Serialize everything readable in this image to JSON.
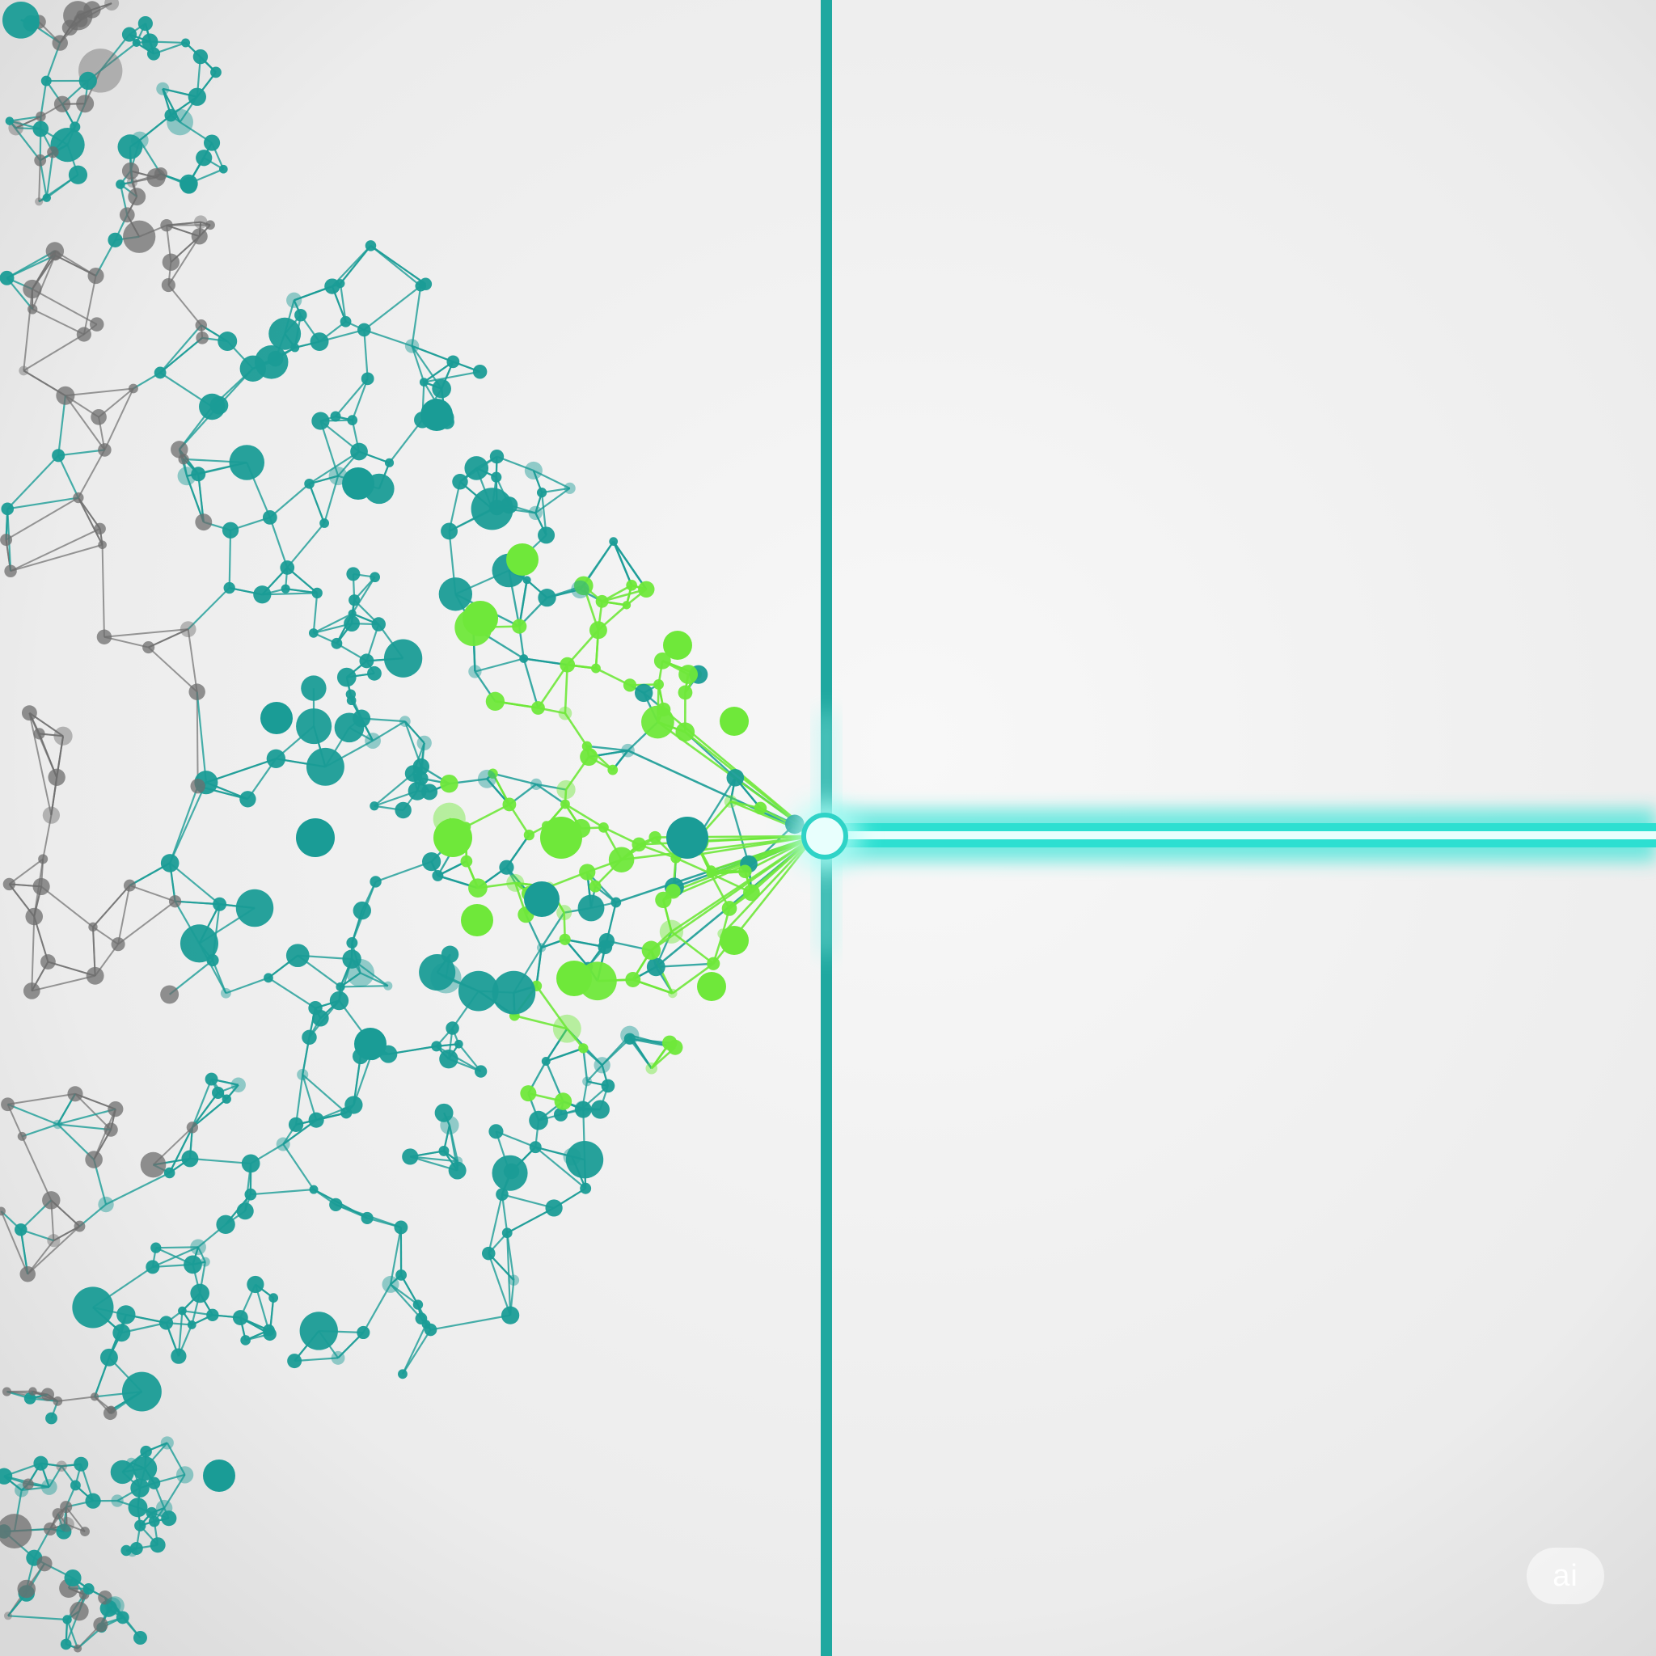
{
  "watermark": {
    "text": "ai"
  },
  "colors": {
    "background_light": "#f6f6f6",
    "background_dark": "#d8d8d8",
    "teal": "#1a9c96",
    "teal_bright": "#2fe3d6",
    "lime": "#6fe83a",
    "gray": "#6d6d6d"
  },
  "icons": {
    "watermark_badge": "ai-badge-icon"
  }
}
